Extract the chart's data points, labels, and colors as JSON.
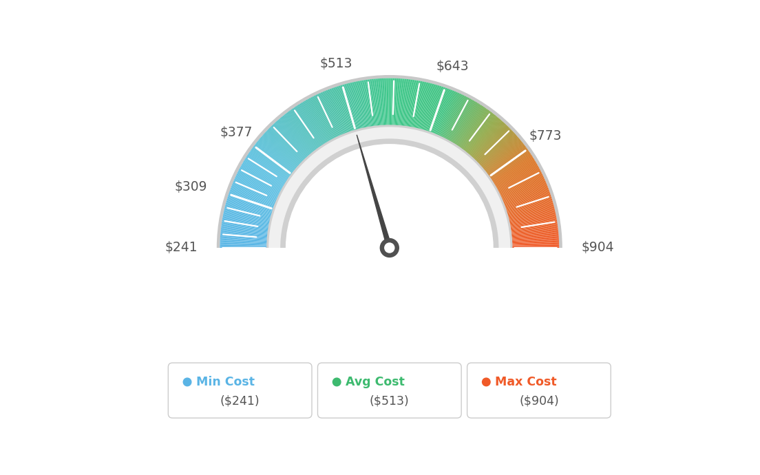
{
  "min_val": 241,
  "max_val": 904,
  "avg_val": 513,
  "labels": [
    "$241",
    "$309",
    "$377",
    "$513",
    "$643",
    "$773",
    "$904"
  ],
  "label_values": [
    241,
    309,
    377,
    513,
    643,
    773,
    904
  ],
  "legend": [
    {
      "label": "Min Cost",
      "value": "($241)",
      "color": "#5ab4e5"
    },
    {
      "label": "Avg Cost",
      "value": "($513)",
      "color": "#3dba6f"
    },
    {
      "label": "Max Cost",
      "value": "($904)",
      "color": "#f05a28"
    }
  ],
  "color_stops": [
    [
      0.0,
      [
        0.35,
        0.71,
        0.9
      ]
    ],
    [
      0.18,
      [
        0.35,
        0.75,
        0.88
      ]
    ],
    [
      0.38,
      [
        0.28,
        0.75,
        0.65
      ]
    ],
    [
      0.5,
      [
        0.24,
        0.78,
        0.54
      ]
    ],
    [
      0.62,
      [
        0.24,
        0.76,
        0.5
      ]
    ],
    [
      0.72,
      [
        0.55,
        0.65,
        0.25
      ]
    ],
    [
      0.82,
      [
        0.85,
        0.45,
        0.12
      ]
    ],
    [
      1.0,
      [
        0.94,
        0.35,
        0.16
      ]
    ]
  ],
  "background_color": "#ffffff",
  "needle_color": "#404040",
  "tick_color": "#ffffff"
}
